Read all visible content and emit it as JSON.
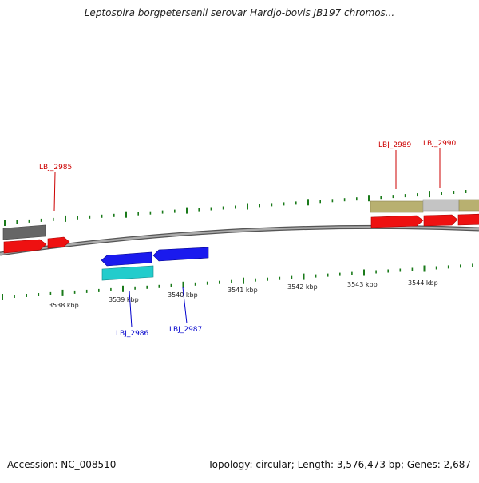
{
  "title": "Leptospira borgpetersenii serovar Hardjo-bovis JB197 chromos...",
  "footer": {
    "accession": "Accession: NC_008510",
    "summary": "Topology: circular; Length: 3,576,473 bp; Genes: 2,687"
  },
  "colors": {
    "backbone": "#888888",
    "tick": "#1a7a1a",
    "gene_forward": "#ee1111",
    "gene_reverse": "#1a1aee",
    "gene_cyan": "#22cccc",
    "gene_dark": "#666666",
    "gene_olive": "#b8b070",
    "gene_grey": "#c4c4c4",
    "label_forward": "#cc0000",
    "label_reverse": "#0000cc"
  },
  "scale": {
    "labels": [
      "3538 kbp",
      "3539 kbp",
      "3540 kbp",
      "3541 kbp",
      "3542 kbp",
      "3543 kbp",
      "3544 kbp"
    ]
  },
  "gene_labels": {
    "lbj_2985": "LBJ_2985",
    "lbj_2986": "LBJ_2986",
    "lbj_2987": "LBJ_2987",
    "lbj_2989": "LBJ_2989",
    "lbj_2990": "LBJ_2990"
  }
}
